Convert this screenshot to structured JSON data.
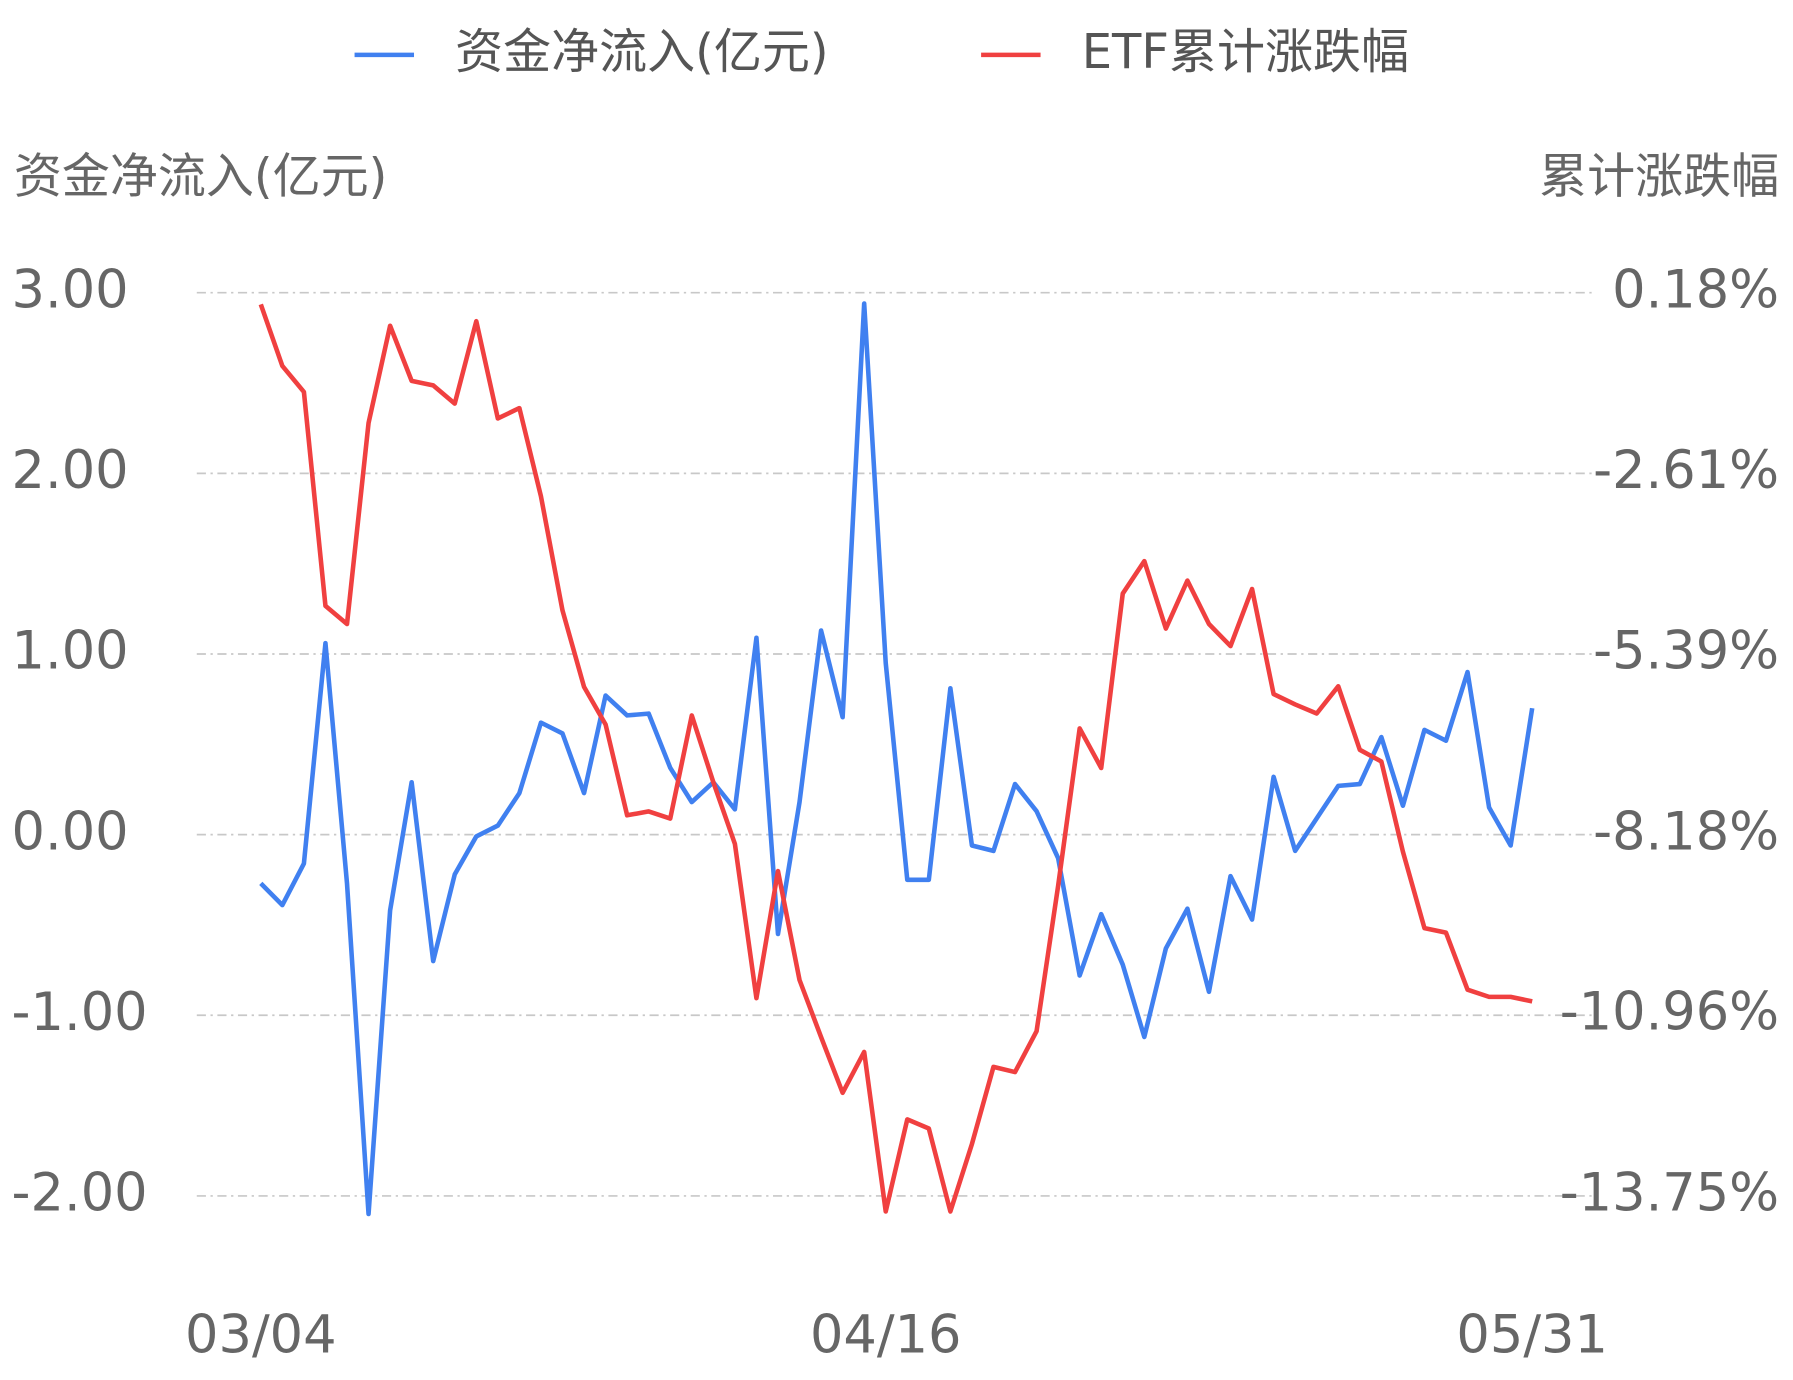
{
  "chart_data": {
    "type": "line",
    "legend": "top",
    "grid": true,
    "ylabel": "资金净流入(亿元)",
    "y2label": "累计涨跌幅",
    "categories": [
      "03/04",
      null,
      null,
      null,
      null,
      null,
      null,
      null,
      null,
      null,
      null,
      null,
      null,
      null,
      null,
      null,
      null,
      null,
      null,
      null,
      null,
      null,
      null,
      null,
      null,
      null,
      null,
      null,
      null,
      "04/16",
      null,
      null,
      null,
      null,
      null,
      null,
      null,
      null,
      null,
      null,
      null,
      null,
      null,
      null,
      null,
      null,
      null,
      null,
      null,
      null,
      null,
      null,
      null,
      null,
      null,
      null,
      null,
      null,
      null,
      "05/31"
    ],
    "ylim": [
      -2,
      3
    ],
    "yticks": [
      {
        "value": -2,
        "label": "-2.00"
      },
      {
        "value": -1,
        "label": "-1.00"
      },
      {
        "value": 0,
        "label": "0.00"
      },
      {
        "value": 1,
        "label": "1.00"
      },
      {
        "value": 2,
        "label": "2.00"
      },
      {
        "value": 3,
        "label": "3.00"
      }
    ],
    "y2lim": [
      -13.75,
      0.18
    ],
    "y2ticks": [
      {
        "value": -13.75,
        "label": "-13.75%"
      },
      {
        "value": -10.96,
        "label": "-10.96%"
      },
      {
        "value": -8.18,
        "label": "-8.18%"
      },
      {
        "value": -5.39,
        "label": "-5.39%"
      },
      {
        "value": -2.61,
        "label": "-2.61%"
      },
      {
        "value": 0.18,
        "label": "0.18%"
      }
    ],
    "series": [
      {
        "name": "资金净流入(亿元)",
        "color": "#4080f0",
        "axis": "y",
        "values": [
          -0.27,
          -0.39,
          -0.16,
          1.06,
          -0.27,
          -2.1,
          -0.42,
          0.29,
          -0.7,
          -0.22,
          -0.01,
          0.05,
          0.23,
          0.62,
          0.56,
          0.23,
          0.77,
          0.66,
          0.67,
          0.37,
          0.18,
          0.29,
          0.14,
          1.09,
          -0.55,
          0.18,
          1.13,
          0.65,
          2.94,
          0.95,
          -0.25,
          -0.25,
          0.81,
          -0.06,
          -0.09,
          0.28,
          0.13,
          -0.13,
          -0.78,
          -0.44,
          -0.72,
          -1.12,
          -0.63,
          -0.41,
          -0.87,
          -0.23,
          -0.47,
          0.32,
          -0.09,
          0.09,
          0.27,
          0.28,
          0.54,
          0.16,
          0.58,
          0.52,
          0.9,
          0.15,
          -0.06,
          0.7
        ]
      },
      {
        "name": "ETF累计涨跌幅",
        "color": "#f04040",
        "axis": "y2",
        "values": [
          0.0,
          -0.95,
          -1.35,
          -4.65,
          -4.93,
          -1.83,
          -0.33,
          -1.18,
          -1.25,
          -1.53,
          -0.26,
          -1.76,
          -1.6,
          -2.96,
          -4.72,
          -5.9,
          -6.48,
          -7.88,
          -7.82,
          -7.93,
          -6.34,
          -7.37,
          -8.32,
          -10.7,
          -8.74,
          -10.42,
          -11.3,
          -12.16,
          -11.53,
          -13.99,
          -12.57,
          -12.71,
          -13.99,
          -12.95,
          -11.76,
          -11.84,
          -11.21,
          -8.97,
          -6.54,
          -7.15,
          -4.46,
          -3.96,
          -5.0,
          -4.26,
          -4.93,
          -5.27,
          -4.39,
          -6.01,
          -6.17,
          -6.31,
          -5.89,
          -6.87,
          -7.05,
          -8.44,
          -9.62,
          -9.69,
          -10.57,
          -10.68,
          -10.68,
          -10.75
        ]
      }
    ]
  }
}
